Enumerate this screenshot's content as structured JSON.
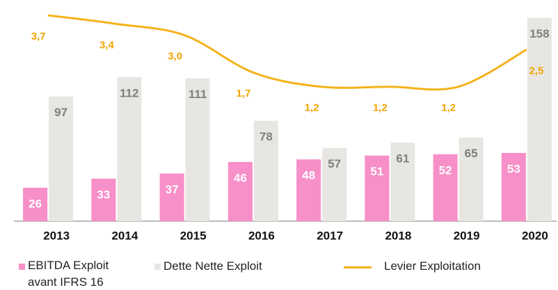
{
  "chart_data": {
    "type": "bar",
    "categories": [
      "2013",
      "2014",
      "2015",
      "2016",
      "2017",
      "2018",
      "2019",
      "2020"
    ],
    "series": [
      {
        "name": "EBITDA Exploit avant IFRS 16",
        "color": "#f78fc8",
        "values": [
          26,
          33,
          37,
          46,
          48,
          51,
          52,
          53
        ]
      },
      {
        "name": "Dette Nette Exploit",
        "color": "#e8e6e3",
        "values": [
          97,
          112,
          111,
          78,
          57,
          61,
          65,
          158
        ]
      },
      {
        "name": "Levier Exploitation",
        "type": "line",
        "axis": "y2",
        "color": "#f5b21b",
        "values": [
          3.7,
          3.4,
          3.0,
          1.7,
          1.2,
          1.2,
          1.2,
          2.5
        ],
        "value_labels": [
          "3,7",
          "3,4",
          "3,0",
          "1,7",
          "1,2",
          "1,2",
          "1,2",
          "2,5"
        ]
      }
    ],
    "ylim": [
      0,
      160
    ],
    "y2lim": [
      -3.5,
      3.7
    ],
    "grid": false,
    "legend": "bottom"
  }
}
